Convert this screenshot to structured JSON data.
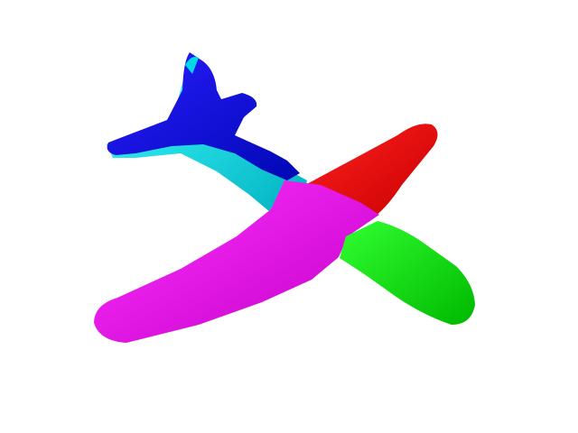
{
  "scene": {
    "background_color": "#ffffff",
    "subject": "airplane-mesh",
    "segments": [
      {
        "id": "tail",
        "color": "#0a00e6",
        "shade": "#000ab0"
      },
      {
        "id": "rear-fuselage",
        "color": "#00f0f0",
        "shade": "#00b8c8"
      },
      {
        "id": "left-wing",
        "color": "#f000f0",
        "shade": "#c000c8"
      },
      {
        "id": "right-wing",
        "color": "#ff0000",
        "shade": "#cc0000"
      },
      {
        "id": "nose",
        "color": "#00ff00",
        "shade": "#00c000"
      }
    ]
  }
}
